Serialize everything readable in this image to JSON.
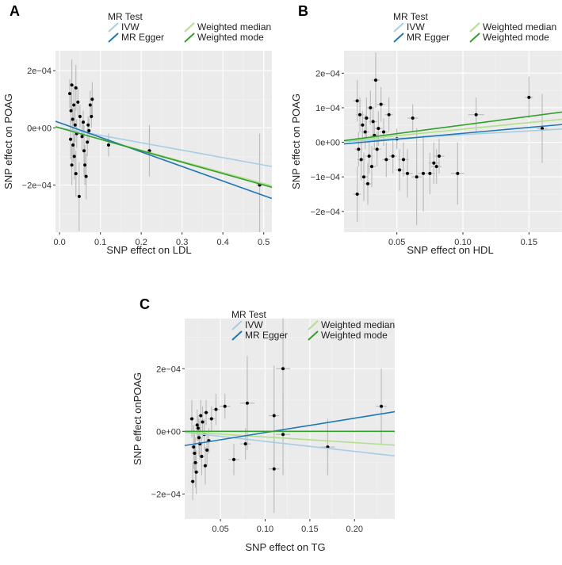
{
  "colors": {
    "panel_bg": "#ebebeb",
    "grid_major": "#ffffff",
    "grid_minor": "#f4f4f4",
    "point": "#000000",
    "errorbar": "#bdbdbd",
    "IVW": "#a6cee3",
    "MR Egger": "#1f78b4",
    "Weighted median": "#b2df8a",
    "Weighted mode": "#33a02c"
  },
  "chart_data": [
    {
      "id": "A",
      "panel_label": "A",
      "type": "scatter",
      "title": "",
      "xlabel": "SNP effect on LDL",
      "ylabel": "SNP effect on POAG",
      "xlim": [
        -0.01,
        0.52
      ],
      "ylim": [
        -0.000365,
        0.00027
      ],
      "xticks": [
        0.0,
        0.1,
        0.2,
        0.3,
        0.4,
        0.5
      ],
      "xtick_labels": [
        "0.0",
        "0.1",
        "0.2",
        "0.3",
        "0.4",
        "0.5"
      ],
      "yticks": [
        0.0002,
        0.0,
        -0.0002
      ],
      "ytick_labels": [
        "2e−04",
        "0e+00",
        "−2e−04"
      ],
      "legend": {
        "title": "MR Test",
        "entries": [
          "IVW",
          "MR Egger",
          "Weighted median",
          "Weighted mode"
        ]
      },
      "lines": [
        {
          "name": "IVW",
          "intercept": 0.0,
          "slope": -0.00026
        },
        {
          "name": "MR Egger",
          "intercept": 1.8e-05,
          "slope": -0.00051
        },
        {
          "name": "Weighted median",
          "intercept": 0.0,
          "slope": -0.00039
        },
        {
          "name": "Weighted mode",
          "intercept": 0.0,
          "slope": -0.0004
        }
      ],
      "points": [
        {
          "x": 0.025,
          "y": 0.00012,
          "xerr": 0.002,
          "yerr": 5e-05
        },
        {
          "x": 0.03,
          "y": 0.00015,
          "xerr": 0.002,
          "yerr": 9e-05
        },
        {
          "x": 0.035,
          "y": 8e-05,
          "xerr": 0.002,
          "yerr": 7e-05
        },
        {
          "x": 0.028,
          "y": 6e-05,
          "xerr": 0.002,
          "yerr": 6e-05
        },
        {
          "x": 0.04,
          "y": 0.00014,
          "xerr": 0.002,
          "yerr": 8e-05
        },
        {
          "x": 0.045,
          "y": 9e-05,
          "xerr": 0.002,
          "yerr": 5e-05
        },
        {
          "x": 0.032,
          "y": 3e-05,
          "xerr": 0.002,
          "yerr": 4e-05
        },
        {
          "x": 0.038,
          "y": 1e-05,
          "xerr": 0.002,
          "yerr": 6e-05
        },
        {
          "x": 0.042,
          "y": -2e-05,
          "xerr": 0.002,
          "yerr": 5e-05
        },
        {
          "x": 0.027,
          "y": -4e-05,
          "xerr": 0.002,
          "yerr": 7e-05
        },
        {
          "x": 0.033,
          "y": -6e-05,
          "xerr": 0.002,
          "yerr": 6e-05
        },
        {
          "x": 0.036,
          "y": -0.0001,
          "xerr": 0.002,
          "yerr": 8e-05
        },
        {
          "x": 0.03,
          "y": -0.00013,
          "xerr": 0.002,
          "yerr": 7e-05
        },
        {
          "x": 0.04,
          "y": -0.00016,
          "xerr": 0.002,
          "yerr": 8e-05
        },
        {
          "x": 0.048,
          "y": -0.00024,
          "xerr": 0.002,
          "yerr": 0.00012
        },
        {
          "x": 0.05,
          "y": 4e-05,
          "xerr": 0.002,
          "yerr": 4e-05
        },
        {
          "x": 0.055,
          "y": -3e-05,
          "xerr": 0.002,
          "yerr": 5e-05
        },
        {
          "x": 0.06,
          "y": -8e-05,
          "xerr": 0.002,
          "yerr": 9e-05
        },
        {
          "x": 0.062,
          "y": -0.00013,
          "xerr": 0.002,
          "yerr": 7e-05
        },
        {
          "x": 0.065,
          "y": -0.00017,
          "xerr": 0.002,
          "yerr": 8e-05
        },
        {
          "x": 0.058,
          "y": 2e-05,
          "xerr": 0.002,
          "yerr": 4e-05
        },
        {
          "x": 0.07,
          "y": 1e-05,
          "xerr": 0.002,
          "yerr": 3e-05
        },
        {
          "x": 0.072,
          "y": -1e-05,
          "xerr": 0.002,
          "yerr": 4e-05
        },
        {
          "x": 0.075,
          "y": 8e-05,
          "xerr": 0.003,
          "yerr": 5e-05
        },
        {
          "x": 0.078,
          "y": 4e-05,
          "xerr": 0.003,
          "yerr": 4e-05
        },
        {
          "x": 0.08,
          "y": 0.0001,
          "xerr": 0.003,
          "yerr": 6e-05
        },
        {
          "x": 0.068,
          "y": -5e-05,
          "xerr": 0.002,
          "yerr": 5e-05
        },
        {
          "x": 0.12,
          "y": -6e-05,
          "xerr": 0.004,
          "yerr": 4e-05
        },
        {
          "x": 0.22,
          "y": -8e-05,
          "xerr": 0.006,
          "yerr": 9e-05
        },
        {
          "x": 0.49,
          "y": -0.0002,
          "xerr": 0.008,
          "yerr": 0.00018
        }
      ]
    },
    {
      "id": "B",
      "panel_label": "B",
      "type": "scatter",
      "title": "",
      "xlabel": "SNP effect on HDL",
      "ylabel": "SNP effect on POAG",
      "xlim": [
        0.01,
        0.175
      ],
      "ylim": [
        -0.00026,
        0.000265
      ],
      "xticks": [
        0.05,
        0.1,
        0.15
      ],
      "xtick_labels": [
        "0.05",
        "0.10",
        "0.15"
      ],
      "yticks": [
        0.0002,
        0.0001,
        0.0,
        -0.0001,
        -0.0002
      ],
      "ytick_labels": [
        "2e−04",
        "1e−04",
        "0e+00",
        "−1e−04",
        "−2e−04"
      ],
      "legend": {
        "title": "MR Test",
        "entries": [
          "IVW",
          "MR Egger",
          "Weighted median",
          "Weighted mode"
        ]
      },
      "lines": [
        {
          "name": "IVW",
          "intercept": 0.0,
          "slope": 0.00022
        },
        {
          "name": "MR Egger",
          "intercept": -8e-06,
          "slope": 0.00034
        },
        {
          "name": "Weighted median",
          "intercept": 0.0,
          "slope": 0.00038
        },
        {
          "name": "Weighted mode",
          "intercept": 0.0,
          "slope": 0.0005
        }
      ],
      "points": [
        {
          "x": 0.02,
          "y": 0.00012,
          "xerr": 0.003,
          "yerr": 6e-05
        },
        {
          "x": 0.022,
          "y": 8e-05,
          "xerr": 0.003,
          "yerr": 5e-05
        },
        {
          "x": 0.024,
          "y": 5e-05,
          "xerr": 0.003,
          "yerr": 4e-05
        },
        {
          "x": 0.026,
          "y": 3e-05,
          "xerr": 0.003,
          "yerr": 5e-05
        },
        {
          "x": 0.021,
          "y": -2e-05,
          "xerr": 0.003,
          "yerr": 5e-05
        },
        {
          "x": 0.023,
          "y": -5e-05,
          "xerr": 0.003,
          "yerr": 6e-05
        },
        {
          "x": 0.025,
          "y": -0.0001,
          "xerr": 0.003,
          "yerr": 7e-05
        },
        {
          "x": 0.02,
          "y": -0.00015,
          "xerr": 0.003,
          "yerr": 8e-05
        },
        {
          "x": 0.028,
          "y": -0.00012,
          "xerr": 0.003,
          "yerr": 6e-05
        },
        {
          "x": 0.03,
          "y": 0.0001,
          "xerr": 0.003,
          "yerr": 5e-05
        },
        {
          "x": 0.032,
          "y": 6e-05,
          "xerr": 0.003,
          "yerr": 4e-05
        },
        {
          "x": 0.034,
          "y": 0.00018,
          "xerr": 0.003,
          "yerr": 8e-05
        },
        {
          "x": 0.036,
          "y": 4e-05,
          "xerr": 0.003,
          "yerr": 5e-05
        },
        {
          "x": 0.027,
          "y": 7e-05,
          "xerr": 0.003,
          "yerr": 6e-05
        },
        {
          "x": 0.029,
          "y": -4e-05,
          "xerr": 0.003,
          "yerr": 5e-05
        },
        {
          "x": 0.031,
          "y": -7e-05,
          "xerr": 0.003,
          "yerr": 6e-05
        },
        {
          "x": 0.033,
          "y": 2e-05,
          "xerr": 0.003,
          "yerr": 4e-05
        },
        {
          "x": 0.035,
          "y": -2e-05,
          "xerr": 0.003,
          "yerr": 5e-05
        },
        {
          "x": 0.038,
          "y": 0.00011,
          "xerr": 0.003,
          "yerr": 5e-05
        },
        {
          "x": 0.04,
          "y": 3e-05,
          "xerr": 0.003,
          "yerr": 4e-05
        },
        {
          "x": 0.042,
          "y": -5e-05,
          "xerr": 0.003,
          "yerr": 5e-05
        },
        {
          "x": 0.044,
          "y": 8e-05,
          "xerr": 0.003,
          "yerr": 5e-05
        },
        {
          "x": 0.047,
          "y": -4e-05,
          "xerr": 0.003,
          "yerr": 5e-05
        },
        {
          "x": 0.05,
          "y": 1e-05,
          "xerr": 0.003,
          "yerr": 3e-05
        },
        {
          "x": 0.052,
          "y": -8e-05,
          "xerr": 0.003,
          "yerr": 6e-05
        },
        {
          "x": 0.055,
          "y": -5e-05,
          "xerr": 0.004,
          "yerr": 5e-05
        },
        {
          "x": 0.058,
          "y": -9e-05,
          "xerr": 0.004,
          "yerr": 7e-05
        },
        {
          "x": 0.062,
          "y": 7e-05,
          "xerr": 0.004,
          "yerr": 4e-05
        },
        {
          "x": 0.065,
          "y": -0.0001,
          "xerr": 0.004,
          "yerr": 0.00014
        },
        {
          "x": 0.07,
          "y": -9e-05,
          "xerr": 0.004,
          "yerr": 0.00011
        },
        {
          "x": 0.075,
          "y": -9e-05,
          "xerr": 0.004,
          "yerr": 6e-05
        },
        {
          "x": 0.078,
          "y": -6e-05,
          "xerr": 0.004,
          "yerr": 6e-05
        },
        {
          "x": 0.082,
          "y": -4e-05,
          "xerr": 0.004,
          "yerr": 5e-05
        },
        {
          "x": 0.08,
          "y": -7e-05,
          "xerr": 0.004,
          "yerr": 5e-05
        },
        {
          "x": 0.096,
          "y": -9e-05,
          "xerr": 0.005,
          "yerr": 9e-05
        },
        {
          "x": 0.11,
          "y": 8e-05,
          "xerr": 0.006,
          "yerr": 5e-05
        },
        {
          "x": 0.15,
          "y": 0.00013,
          "xerr": 0.003,
          "yerr": 6e-05
        },
        {
          "x": 0.16,
          "y": 4e-05,
          "xerr": 0.004,
          "yerr": 0.0001
        }
      ]
    },
    {
      "id": "C",
      "panel_label": "C",
      "type": "scatter",
      "title": "",
      "xlabel": "SNP effect on TG",
      "ylabel": "SNP effect onPOAG",
      "xlim": [
        0.01,
        0.245
      ],
      "ylim": [
        -0.00028,
        0.00036
      ],
      "xticks": [
        0.05,
        0.1,
        0.15,
        0.2
      ],
      "xtick_labels": [
        "0.05",
        "0.10",
        "0.15",
        "0.20"
      ],
      "yticks": [
        0.0002,
        0.0,
        -0.0002
      ],
      "ytick_labels": [
        "2e−04",
        "0e+00",
        "−2e−04"
      ],
      "legend": {
        "title": "MR Test",
        "entries": [
          "IVW",
          "MR Egger",
          "Weighted median",
          "Weighted mode"
        ]
      },
      "lines": [
        {
          "name": "IVW",
          "intercept": 0.0,
          "slope": -0.00032
        },
        {
          "name": "MR Egger",
          "intercept": -5e-05,
          "slope": 0.00046
        },
        {
          "name": "Weighted median",
          "intercept": 0.0,
          "slope": -0.00018
        },
        {
          "name": "Weighted mode",
          "intercept": 0.0,
          "slope": 0.0
        }
      ],
      "points": [
        {
          "x": 0.018,
          "y": 4e-05,
          "xerr": 0.003,
          "yerr": 6e-05
        },
        {
          "x": 0.02,
          "y": -5e-05,
          "xerr": 0.003,
          "yerr": 7e-05
        },
        {
          "x": 0.022,
          "y": -0.0001,
          "xerr": 0.003,
          "yerr": 8e-05
        },
        {
          "x": 0.019,
          "y": -0.00016,
          "xerr": 0.003,
          "yerr": 6e-05
        },
        {
          "x": 0.024,
          "y": 2e-05,
          "xerr": 0.003,
          "yerr": 5e-05
        },
        {
          "x": 0.026,
          "y": -2e-05,
          "xerr": 0.003,
          "yerr": 6e-05
        },
        {
          "x": 0.028,
          "y": 5e-05,
          "xerr": 0.003,
          "yerr": 5e-05
        },
        {
          "x": 0.021,
          "y": -7e-05,
          "xerr": 0.003,
          "yerr": 6e-05
        },
        {
          "x": 0.023,
          "y": -0.00013,
          "xerr": 0.003,
          "yerr": 7e-05
        },
        {
          "x": 0.025,
          "y": 1e-05,
          "xerr": 0.003,
          "yerr": 4e-05
        },
        {
          "x": 0.027,
          "y": -4e-05,
          "xerr": 0.003,
          "yerr": 5e-05
        },
        {
          "x": 0.029,
          "y": -8e-05,
          "xerr": 0.003,
          "yerr": 6e-05
        },
        {
          "x": 0.03,
          "y": 3e-05,
          "xerr": 0.003,
          "yerr": 5e-05
        },
        {
          "x": 0.032,
          "y": -1e-05,
          "xerr": 0.003,
          "yerr": 5e-05
        },
        {
          "x": 0.034,
          "y": 6e-05,
          "xerr": 0.003,
          "yerr": 4e-05
        },
        {
          "x": 0.035,
          "y": -6e-05,
          "xerr": 0.003,
          "yerr": 5e-05
        },
        {
          "x": 0.037,
          "y": -3e-05,
          "xerr": 0.003,
          "yerr": 4e-05
        },
        {
          "x": 0.033,
          "y": -0.00011,
          "xerr": 0.003,
          "yerr": 6e-05
        },
        {
          "x": 0.04,
          "y": 4e-05,
          "xerr": 0.004,
          "yerr": 4e-05
        },
        {
          "x": 0.045,
          "y": 7e-05,
          "xerr": 0.004,
          "yerr": 5e-05
        },
        {
          "x": 0.055,
          "y": 8e-05,
          "xerr": 0.006,
          "yerr": 4e-05
        },
        {
          "x": 0.065,
          "y": -9e-05,
          "xerr": 0.006,
          "yerr": 5e-05
        },
        {
          "x": 0.078,
          "y": -4e-05,
          "xerr": 0.006,
          "yerr": 5e-05
        },
        {
          "x": 0.08,
          "y": 9e-05,
          "xerr": 0.008,
          "yerr": 0.00015
        },
        {
          "x": 0.11,
          "y": 5e-05,
          "xerr": 0.006,
          "yerr": 0.00016
        },
        {
          "x": 0.11,
          "y": -0.00012,
          "xerr": 0.006,
          "yerr": 0.00014
        },
        {
          "x": 0.12,
          "y": 0.0002,
          "xerr": 0.008,
          "yerr": 0.00018
        },
        {
          "x": 0.12,
          "y": -1e-05,
          "xerr": 0.008,
          "yerr": 0.00013
        },
        {
          "x": 0.17,
          "y": -5e-05,
          "xerr": 0.008,
          "yerr": 9e-05
        },
        {
          "x": 0.23,
          "y": 8e-05,
          "xerr": 0.006,
          "yerr": 0.00012
        }
      ]
    }
  ]
}
